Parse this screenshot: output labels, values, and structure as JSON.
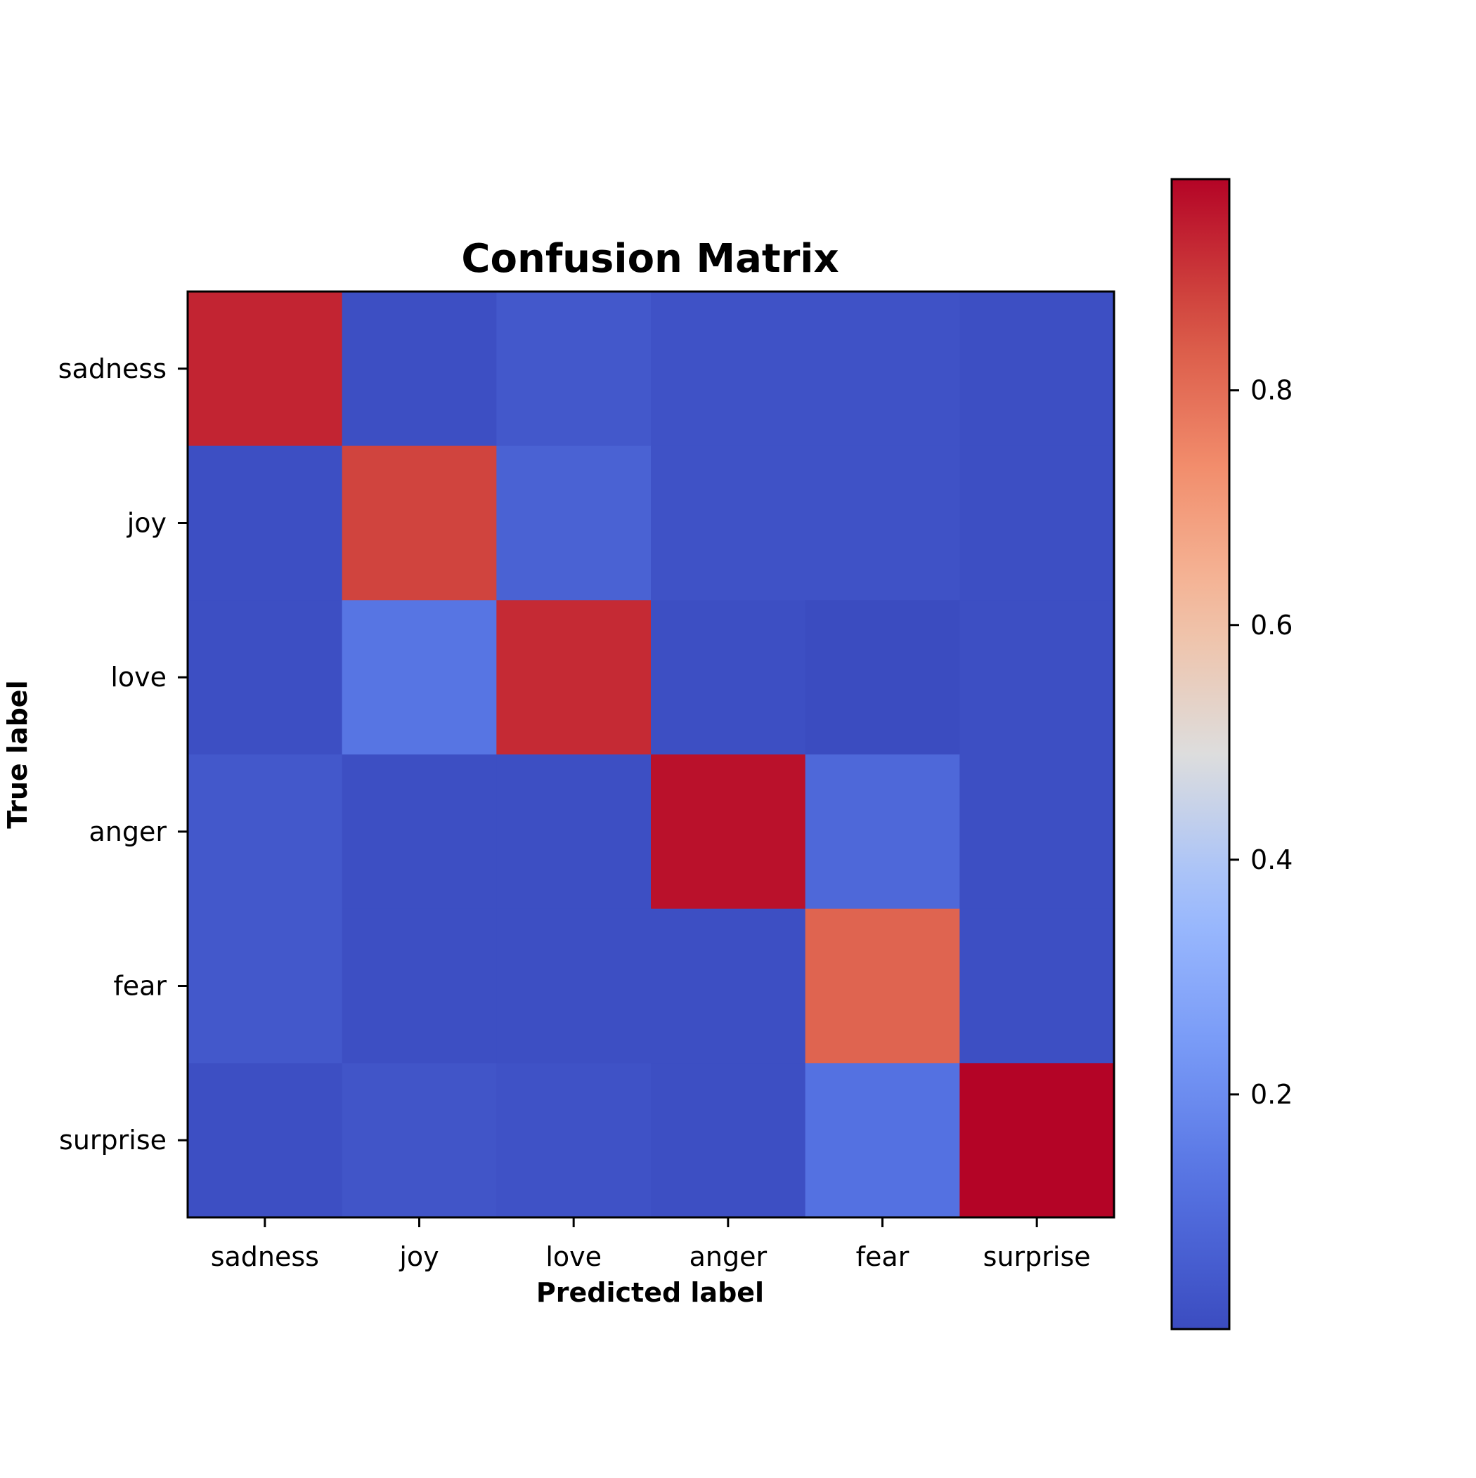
{
  "chart_data": {
    "type": "heatmap",
    "title": "Confusion Matrix",
    "xlabel": "Predicted label",
    "ylabel": "True label",
    "x_categories": [
      "sadness",
      "joy",
      "love",
      "anger",
      "fear",
      "surprise"
    ],
    "y_categories": [
      "sadness",
      "joy",
      "love",
      "anger",
      "fear",
      "surprise"
    ],
    "values": [
      [
        0.93,
        0.01,
        0.04,
        0.02,
        0.02,
        0.01
      ],
      [
        0.01,
        0.88,
        0.07,
        0.02,
        0.02,
        0.01
      ],
      [
        0.01,
        0.13,
        0.92,
        0.01,
        0.0,
        0.01
      ],
      [
        0.04,
        0.01,
        0.01,
        0.96,
        0.09,
        0.01
      ],
      [
        0.04,
        0.01,
        0.01,
        0.01,
        0.82,
        0.01
      ],
      [
        0.01,
        0.03,
        0.02,
        0.01,
        0.12,
        0.98
      ]
    ],
    "colormap": "coolwarm",
    "colorbar": {
      "vmin": 0.0,
      "vmax": 0.98,
      "ticks": [
        0.2,
        0.4,
        0.6,
        0.8
      ],
      "tick_labels": [
        "0.2",
        "0.4",
        "0.6",
        "0.8"
      ]
    },
    "grid": false,
    "colors": {
      "cold_end": "#3b4cc0",
      "neutral": "#dddddd",
      "warm_end": "#b40426"
    }
  }
}
